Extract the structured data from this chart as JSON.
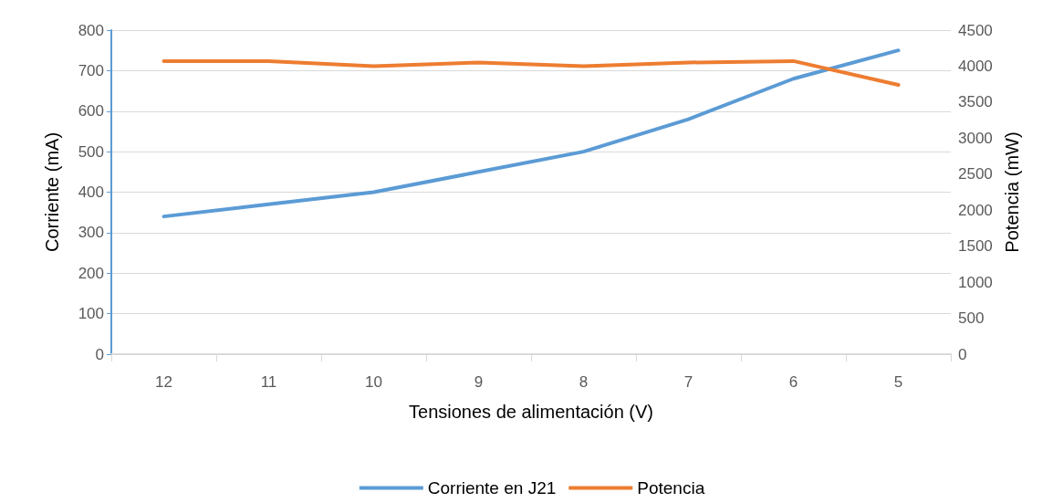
{
  "chart_data": {
    "type": "line",
    "xlabel": "Tensiones de alimentación (V)",
    "ylabel": "Corriente (mA)",
    "y2label": "Potencia (mW)",
    "categories": [
      "12",
      "11",
      "10",
      "9",
      "8",
      "7",
      "6",
      "5"
    ],
    "series": [
      {
        "name": "Corriente en J21",
        "color": "#5b9bd5",
        "values": [
          340,
          370,
          400,
          450,
          500,
          580,
          680,
          750
        ]
      },
      {
        "name": "Potencia",
        "color": "#ed7d31",
        "axis": "y2",
        "values": [
          4070,
          4070,
          4000,
          4050,
          4000,
          4050,
          4070,
          3740
        ]
      }
    ],
    "ylim": [
      0,
      800
    ],
    "yticks": [
      0,
      100,
      200,
      300,
      400,
      500,
      600,
      700,
      800
    ],
    "y2lim": [
      0,
      4500
    ],
    "y2ticks": [
      0,
      500,
      1000,
      1500,
      2000,
      2500,
      3000,
      3500,
      4000,
      4500
    ],
    "grid": "y",
    "legend": "bottom",
    "marker": "none",
    "line_style": "solid"
  }
}
